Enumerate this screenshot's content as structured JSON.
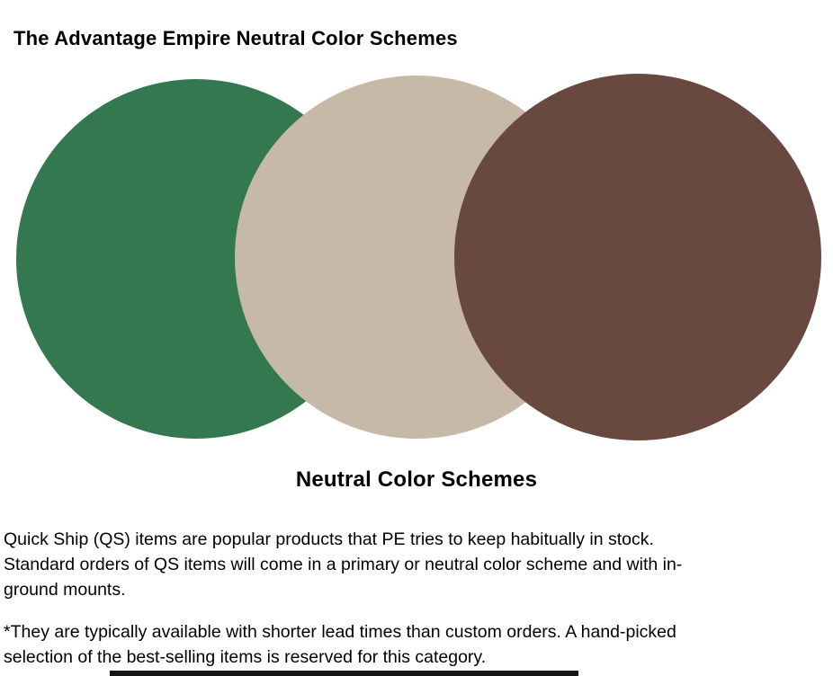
{
  "header": {
    "title_prefix": "The Advantage Empire",
    "title_suffix": "Neutral Color Schemes"
  },
  "figure": {
    "caption": "Neutral Color Schemes",
    "circles": [
      {
        "name": "green-circle",
        "color": "#347850"
      },
      {
        "name": "tan-circle",
        "color": "#C7B9A8"
      },
      {
        "name": "brown-circle",
        "color": "#694840"
      }
    ]
  },
  "body": {
    "paragraph1_lines": [
      "Quick Ship (QS) items are popular products that PE tries to keep habitually in stock.",
      "Standard orders of QS items will come in a primary or neutral color scheme and with in-",
      "ground mounts."
    ],
    "paragraph2_lines": [
      "*They are typically available with shorter lead times than custom orders. A hand-picked",
      "selection of the best-selling items is reserved for this category."
    ]
  }
}
